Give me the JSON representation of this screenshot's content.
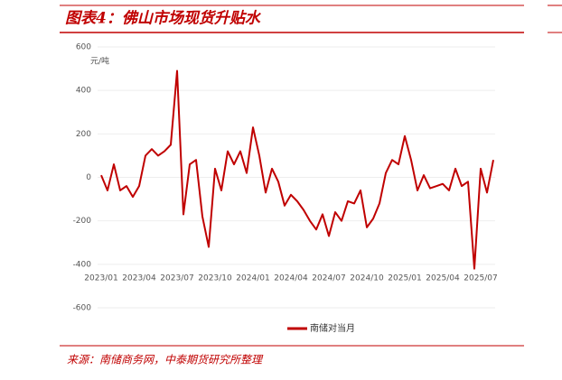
{
  "chart_data": {
    "type": "line",
    "title": "图表4：佛山市场现货升贴水",
    "y_unit": "元/吨",
    "source": "来源：南储商务网，中泰期货研究所整理",
    "categories": [
      "2023/01",
      null,
      null,
      null,
      null,
      null,
      "2023/04",
      null,
      null,
      null,
      null,
      null,
      "2023/07",
      null,
      null,
      null,
      null,
      null,
      "2023/10",
      null,
      null,
      null,
      null,
      null,
      "2024/01",
      null,
      null,
      null,
      null,
      null,
      "2024/04",
      null,
      null,
      null,
      null,
      null,
      "2024/07",
      null,
      null,
      null,
      null,
      null,
      "2024/10",
      null,
      null,
      null,
      null,
      null,
      "2025/01",
      null,
      null,
      null,
      null,
      null,
      "2025/04",
      null,
      null,
      null,
      null,
      null,
      "2025/07",
      null,
      null
    ],
    "series": [
      {
        "name": "南储对当月",
        "color": "#c00000",
        "values": [
          10,
          -60,
          60,
          -60,
          -40,
          -90,
          -40,
          100,
          130,
          100,
          120,
          150,
          490,
          -170,
          60,
          80,
          -180,
          -320,
          40,
          -60,
          120,
          60,
          120,
          20,
          230,
          100,
          -70,
          40,
          -20,
          -130,
          -80,
          -110,
          -150,
          -200,
          -240,
          -170,
          -270,
          -160,
          -200,
          -110,
          -120,
          -60,
          -230,
          -190,
          -120,
          20,
          80,
          60,
          190,
          80,
          -60,
          10,
          -50,
          -40,
          -30,
          -60,
          40,
          -40,
          -20,
          -420,
          40,
          -70,
          80
        ]
      }
    ],
    "ylim": [
      -600,
      600
    ],
    "yticks": [
      -600,
      -400,
      -200,
      0,
      200,
      400,
      600
    ],
    "grid": true
  }
}
